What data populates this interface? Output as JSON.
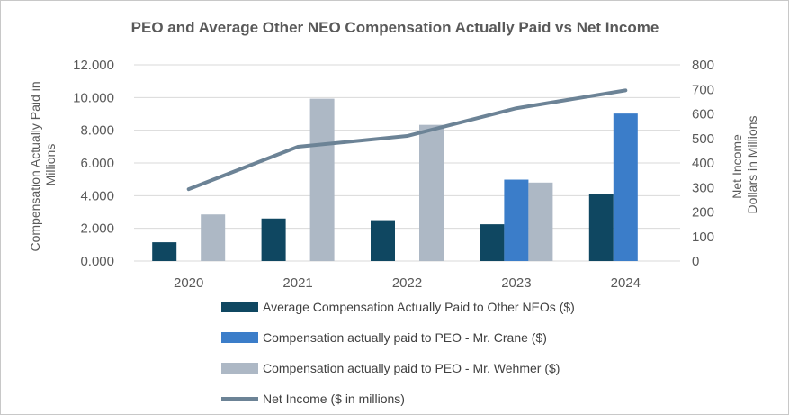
{
  "chart_data": {
    "type": "bar",
    "title": "PEO and Average Other NEO Compensation Actually Paid vs Net Income",
    "categories": [
      "2020",
      "2021",
      "2022",
      "2023",
      "2024"
    ],
    "y_left": {
      "label_lines": [
        "Compensation Actually Paid in",
        "Millions"
      ],
      "range": [
        0,
        12
      ],
      "ticks": [
        "0.000",
        "2.000",
        "4.000",
        "6.000",
        "8.000",
        "10.000",
        "12.000"
      ]
    },
    "y_right": {
      "label_lines": [
        "Net Income",
        "Dollars in Millions"
      ],
      "range": [
        0,
        800
      ],
      "ticks": [
        "0",
        "100",
        "200",
        "300",
        "400",
        "500",
        "600",
        "700",
        "800"
      ]
    },
    "grid": "horizontal",
    "legend_position": "bottom",
    "series": [
      {
        "name": "Average Compensation Actually Paid to Other NEOs ($)",
        "kind": "bar",
        "axis": "left",
        "color": "#0f4761",
        "values": [
          1.15,
          2.6,
          2.5,
          2.25,
          4.1
        ]
      },
      {
        "name": "Compensation actually paid to PEO - Mr. Crane ($)",
        "kind": "bar",
        "axis": "left",
        "color": "#3b7dc9",
        "values": [
          null,
          null,
          null,
          4.98,
          9.02
        ]
      },
      {
        "name": "Compensation actually paid to PEO - Mr. Wehmer ($)",
        "kind": "bar",
        "axis": "left",
        "color": "#adb8c5",
        "values": [
          2.85,
          9.93,
          8.33,
          4.8,
          null
        ]
      },
      {
        "name": "Net Income ($ in millions)",
        "kind": "line",
        "axis": "right",
        "color": "#6c8396",
        "values": [
          293,
          466,
          510,
          623,
          696
        ]
      }
    ]
  }
}
